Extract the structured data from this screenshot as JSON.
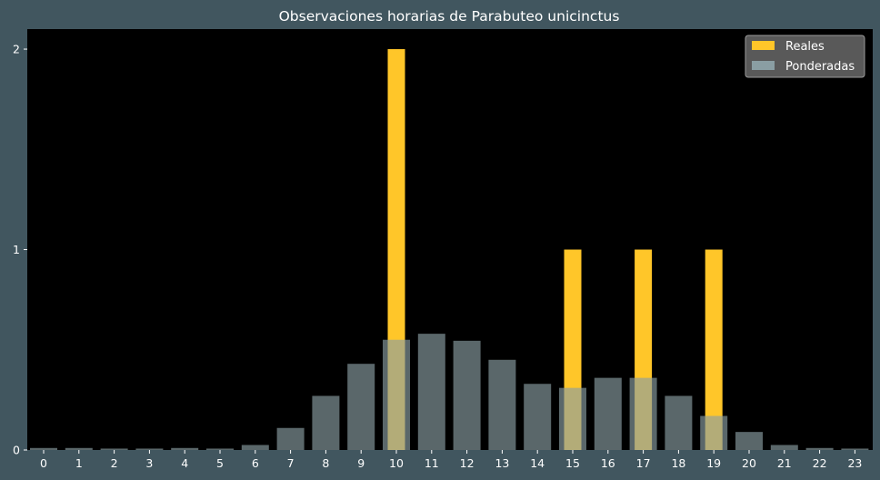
{
  "chart_data": {
    "type": "bar",
    "title": "Observaciones horarias de Parabuteo unicinctus",
    "xlabel": "",
    "ylabel": "",
    "categories": [
      "0",
      "1",
      "2",
      "3",
      "4",
      "5",
      "6",
      "7",
      "8",
      "9",
      "10",
      "11",
      "12",
      "13",
      "14",
      "15",
      "16",
      "17",
      "18",
      "19",
      "20",
      "21",
      "22",
      "23"
    ],
    "series": [
      {
        "name": "Reales",
        "color": "#ffc629",
        "values": [
          0,
          0,
          0,
          0,
          0,
          0,
          0,
          0,
          0,
          0,
          2,
          0,
          0,
          0,
          0,
          1,
          0,
          1,
          0,
          1,
          0,
          0,
          0,
          0
        ]
      },
      {
        "name": "Ponderadas",
        "color": "#8a9ea3",
        "values": [
          0.01,
          0.01,
          0.007,
          0.007,
          0.01,
          0.007,
          0.025,
          0.11,
          0.27,
          0.43,
          0.55,
          0.58,
          0.545,
          0.45,
          0.33,
          0.31,
          0.36,
          0.36,
          0.27,
          0.17,
          0.09,
          0.025,
          0.01,
          0.007
        ]
      }
    ],
    "yticks": [
      "0",
      "1",
      "2"
    ],
    "ylim": [
      0,
      2.1
    ],
    "legend_position": "top-right",
    "background": "#000000",
    "figure_background": "#41565f"
  }
}
